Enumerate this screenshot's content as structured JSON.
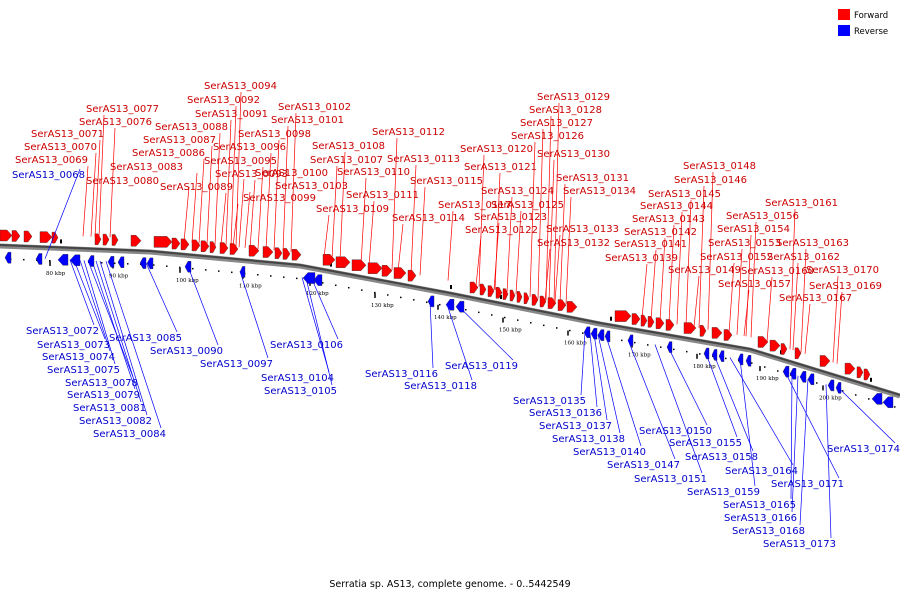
{
  "legend": {
    "forward_label": "Forward",
    "reverse_label": "Reverse",
    "forward_color": "#ff0000",
    "reverse_color": "#0000ff"
  },
  "caption": "Serratia sp. AS13, complete genome. - 0..5442549",
  "ticks": [
    "80 kbp",
    "90 kbp",
    "100 kbp",
    "110 kbp",
    "120 kbp",
    "130 kbp",
    "140 kbp",
    "150 kbp",
    "160 kbp",
    "170 kbp",
    "180 kbp",
    "190 kbp",
    "200 kbp"
  ],
  "forward_labels": [
    "SerAS13_0094",
    "SerAS13_0092",
    "SerAS13_0091",
    "SerAS13_0088",
    "SerAS13_0087",
    "SerAS13_0086",
    "SerAS13_0083",
    "SerAS13_0080",
    "SerAS13_0077",
    "SerAS13_0076",
    "SerAS13_0071",
    "SerAS13_0070",
    "SerAS13_0069",
    "SerAS13_0102",
    "SerAS13_0101",
    "SerAS13_0098",
    "SerAS13_0096",
    "SerAS13_0095",
    "SerAS13_0093",
    "SerAS13_0089",
    "SerAS13_0100",
    "SerAS13_0103",
    "SerAS13_0099",
    "SerAS13_0108",
    "SerAS13_0107",
    "SerAS13_0110",
    "SerAS13_0111",
    "SerAS13_0109",
    "SerAS13_0112",
    "SerAS13_0113",
    "SerAS13_0115",
    "SerAS13_0117",
    "SerAS13_0114",
    "SerAS13_0129",
    "SerAS13_0128",
    "SerAS13_0127",
    "SerAS13_0126",
    "SerAS13_0120",
    "SerAS13_0130",
    "SerAS13_0121",
    "SerAS13_0131",
    "SerAS13_0124",
    "SerAS13_0134",
    "SerAS13_0125",
    "SerAS13_0123",
    "SerAS13_0122",
    "SerAS13_0133",
    "SerAS13_0132",
    "SerAS13_0148",
    "SerAS13_0146",
    "SerAS13_0145",
    "SerAS13_0144",
    "SerAS13_0143",
    "SerAS13_0142",
    "SerAS13_0141",
    "SerAS13_0139",
    "SerAS13_0161",
    "SerAS13_0156",
    "SerAS13_0154",
    "SerAS13_0153",
    "SerAS13_0163",
    "SerAS13_0152",
    "SerAS13_0162",
    "SerAS13_0149",
    "SerAS13_0160",
    "SerAS13_0170",
    "SerAS13_0157",
    "SerAS13_0169",
    "SerAS13_0167"
  ],
  "reverse_labels": [
    "SerAS13_0068",
    "SerAS13_0072",
    "SerAS13_0073",
    "SerAS13_0074",
    "SerAS13_0075",
    "SerAS13_0078",
    "SerAS13_0079",
    "SerAS13_0081",
    "SerAS13_0082",
    "SerAS13_0084",
    "SerAS13_0085",
    "SerAS13_0090",
    "SerAS13_0097",
    "SerAS13_0106",
    "SerAS13_0104",
    "SerAS13_0105",
    "SerAS13_0116",
    "SerAS13_0118",
    "SerAS13_0119",
    "SerAS13_0135",
    "SerAS13_0136",
    "SerAS13_0137",
    "SerAS13_0138",
    "SerAS13_0140",
    "SerAS13_0147",
    "SerAS13_0151",
    "SerAS13_0150",
    "SerAS13_0155",
    "SerAS13_0158",
    "SerAS13_0164",
    "SerAS13_0159",
    "SerAS13_0171",
    "SerAS13_0165",
    "SerAS13_0166",
    "SerAS13_0168",
    "SerAS13_0173",
    "SerAS13_0174"
  ]
}
